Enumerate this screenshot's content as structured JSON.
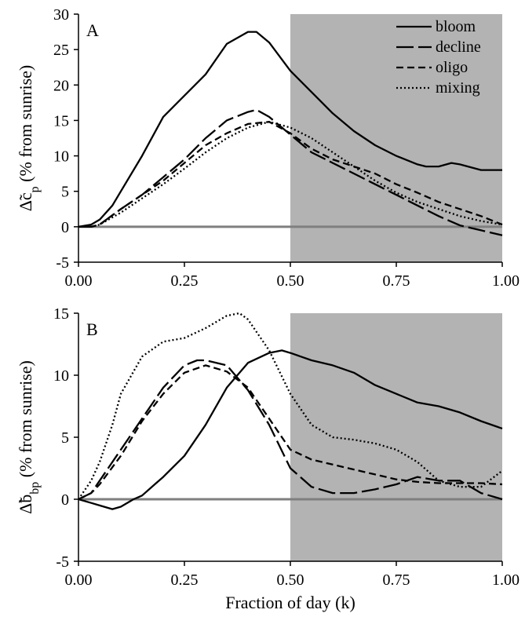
{
  "figure": {
    "xlabel": "Fraction of day (k)"
  },
  "colors": {
    "night_shade": "#b3b3b3",
    "zero_line": "#7f7f7f",
    "ink": "#000000"
  },
  "chart_data": [
    {
      "panel_label": "A",
      "type": "line",
      "ylabel": "Δ̃c",
      "ylabel_sub": "p",
      "ylabel_tail": " (% from sunrise)",
      "xlim": [
        0,
        1
      ],
      "ylim": [
        -5,
        30
      ],
      "xticks": [
        "0.00",
        "0.25",
        "0.50",
        "0.75",
        "1.00"
      ],
      "yticks": [
        "-5",
        "0",
        "5",
        "10",
        "15",
        "20",
        "25",
        "30"
      ],
      "ytick_values": [
        -5,
        0,
        5,
        10,
        15,
        20,
        25,
        30
      ],
      "shaded_x": [
        0.5,
        1.0
      ],
      "zero_line": 0,
      "legend_position": "top-right",
      "series": [
        {
          "name": "bloom",
          "dash": "solid",
          "x": [
            0,
            0.03,
            0.05,
            0.08,
            0.1,
            0.15,
            0.2,
            0.25,
            0.3,
            0.35,
            0.4,
            0.42,
            0.45,
            0.5,
            0.55,
            0.6,
            0.65,
            0.7,
            0.75,
            0.8,
            0.82,
            0.85,
            0.88,
            0.9,
            0.95,
            1.0
          ],
          "y": [
            0,
            0.3,
            1,
            3,
            5,
            10,
            15.5,
            18.5,
            21.5,
            25.8,
            27.5,
            27.5,
            26,
            22,
            19,
            16,
            13.5,
            11.5,
            10,
            8.8,
            8.5,
            8.5,
            9,
            8.8,
            8,
            8
          ]
        },
        {
          "name": "decline",
          "dash": "long",
          "x": [
            0,
            0.03,
            0.05,
            0.1,
            0.15,
            0.2,
            0.25,
            0.3,
            0.35,
            0.4,
            0.42,
            0.45,
            0.5,
            0.55,
            0.6,
            0.65,
            0.7,
            0.75,
            0.8,
            0.85,
            0.9,
            0.95,
            1.0
          ],
          "y": [
            0,
            0,
            0.3,
            2.5,
            4.5,
            7,
            9.5,
            12.5,
            15,
            16.2,
            16.5,
            15.5,
            13,
            10.5,
            9,
            7.5,
            6,
            4.5,
            3,
            1.5,
            0.2,
            -0.5,
            -1.2
          ]
        },
        {
          "name": "oligo",
          "dash": "short",
          "x": [
            0,
            0.03,
            0.05,
            0.1,
            0.15,
            0.2,
            0.25,
            0.3,
            0.35,
            0.4,
            0.45,
            0.5,
            0.55,
            0.6,
            0.65,
            0.7,
            0.75,
            0.8,
            0.85,
            0.9,
            0.95,
            1.0
          ],
          "y": [
            0,
            0,
            0.3,
            2.5,
            4.5,
            6.5,
            9,
            11.5,
            13.2,
            14.5,
            14.8,
            13.2,
            11,
            9.5,
            8.5,
            7.5,
            6,
            4.8,
            3.5,
            2.5,
            1.5,
            0.3
          ]
        },
        {
          "name": "mixing",
          "dash": "dotted",
          "x": [
            0,
            0.03,
            0.05,
            0.1,
            0.15,
            0.2,
            0.25,
            0.3,
            0.35,
            0.4,
            0.45,
            0.5,
            0.55,
            0.6,
            0.65,
            0.7,
            0.75,
            0.8,
            0.85,
            0.9,
            0.95,
            1.0
          ],
          "y": [
            0,
            0,
            0.3,
            2,
            4,
            6,
            8.2,
            10.5,
            12.5,
            14,
            14.8,
            14,
            12.5,
            10.5,
            8.5,
            6.5,
            4.8,
            3.5,
            2.5,
            1.5,
            0.8,
            0.3
          ]
        }
      ]
    },
    {
      "panel_label": "B",
      "type": "line",
      "ylabel": "Δ̃b",
      "ylabel_sub": "bp",
      "ylabel_tail": " (% from sunrise)",
      "xlim": [
        0,
        1
      ],
      "ylim": [
        -5,
        15
      ],
      "xticks": [
        "0.00",
        "0.25",
        "0.50",
        "0.75",
        "1.00"
      ],
      "yticks": [
        "-5",
        "0",
        "5",
        "10",
        "15"
      ],
      "ytick_values": [
        -5,
        0,
        5,
        10,
        15
      ],
      "shaded_x": [
        0.5,
        1.0
      ],
      "zero_line": 0,
      "series": [
        {
          "name": "bloom",
          "dash": "solid",
          "x": [
            0,
            0.03,
            0.05,
            0.08,
            0.1,
            0.13,
            0.15,
            0.18,
            0.2,
            0.25,
            0.3,
            0.35,
            0.4,
            0.45,
            0.48,
            0.5,
            0.55,
            0.6,
            0.65,
            0.7,
            0.75,
            0.8,
            0.85,
            0.9,
            0.95,
            1.0
          ],
          "y": [
            0,
            -0.3,
            -0.5,
            -0.8,
            -0.6,
            0,
            0.3,
            1.2,
            1.8,
            3.5,
            6,
            9,
            11,
            11.8,
            12,
            11.8,
            11.2,
            10.8,
            10.2,
            9.2,
            8.5,
            7.8,
            7.5,
            7,
            6.3,
            5.7
          ]
        },
        {
          "name": "decline",
          "dash": "long",
          "x": [
            0,
            0.03,
            0.05,
            0.1,
            0.15,
            0.2,
            0.25,
            0.28,
            0.3,
            0.35,
            0.4,
            0.45,
            0.5,
            0.55,
            0.6,
            0.65,
            0.7,
            0.75,
            0.8,
            0.85,
            0.9,
            0.95,
            1.0
          ],
          "y": [
            0,
            0.5,
            1.5,
            4,
            6.5,
            9,
            10.8,
            11.2,
            11.2,
            10.8,
            8.8,
            6,
            2.5,
            1,
            0.5,
            0.5,
            0.8,
            1.2,
            1.8,
            1.5,
            1.5,
            0.5,
            0
          ]
        },
        {
          "name": "oligo",
          "dash": "short",
          "x": [
            0,
            0.03,
            0.05,
            0.1,
            0.15,
            0.2,
            0.25,
            0.3,
            0.35,
            0.4,
            0.45,
            0.5,
            0.55,
            0.6,
            0.65,
            0.7,
            0.75,
            0.8,
            0.85,
            0.9,
            0.95,
            1.0
          ],
          "y": [
            0,
            0.5,
            1.2,
            3.5,
            6.3,
            8.5,
            10.2,
            10.8,
            10.3,
            9,
            6.5,
            4,
            3.2,
            2.8,
            2.4,
            2,
            1.6,
            1.4,
            1.3,
            1.3,
            1.3,
            1.2
          ]
        },
        {
          "name": "mixing",
          "dash": "dotted",
          "x": [
            0,
            0.03,
            0.05,
            0.08,
            0.1,
            0.15,
            0.2,
            0.25,
            0.3,
            0.35,
            0.38,
            0.4,
            0.45,
            0.5,
            0.55,
            0.6,
            0.65,
            0.7,
            0.75,
            0.8,
            0.85,
            0.9,
            0.95,
            1.0
          ],
          "y": [
            0,
            1.5,
            3,
            6,
            8.5,
            11.5,
            12.7,
            13,
            13.8,
            14.8,
            15,
            14.5,
            12,
            8.5,
            6,
            5,
            4.8,
            4.5,
            4,
            3,
            1.5,
            1,
            1,
            2.3
          ]
        }
      ]
    }
  ]
}
